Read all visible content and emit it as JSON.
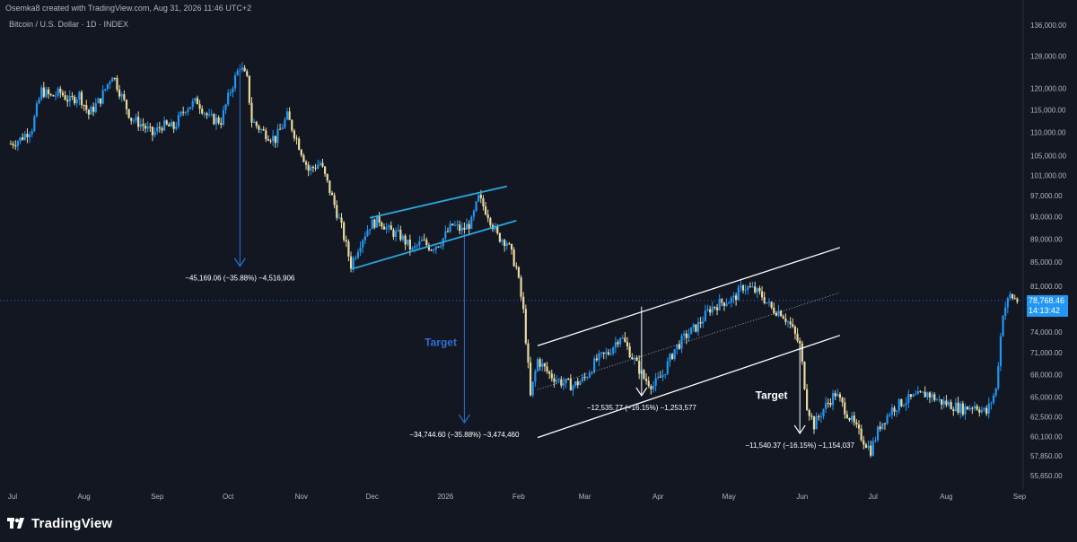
{
  "header": {
    "caption": "Osemka8 created with TradingView.com, Aug 31, 2026 11:46 UTC+2",
    "symbol": "Bitcoin / U.S. Dollar · 1D · INDEX"
  },
  "footer": {
    "brand": "TradingView"
  },
  "price_tag": {
    "price": "78,768.46",
    "countdown": "14:13:42"
  },
  "colors": {
    "background": "#131722",
    "up": "#2196f3",
    "down": "#e8d9a0",
    "wedge_lines": "#29a9e0",
    "channel_lines": "#ffffff",
    "arrow_blue": "#2f6fd6",
    "target_blue": "#2f6fd6",
    "current_price_line": "#2962ff",
    "axis_text": "#b2b5be"
  },
  "chart_data": {
    "type": "candlestick",
    "title": "Bitcoin / U.S. Dollar · 1D · INDEX",
    "xlabel": "",
    "ylabel": "",
    "x_tick_labels": [
      "Jul",
      "Aug",
      "Sep",
      "Oct",
      "Nov",
      "Dec",
      "2026",
      "Feb",
      "Mar",
      "Apr",
      "May",
      "Jun",
      "Jul",
      "Aug",
      "Sep"
    ],
    "y_tick_labels": [
      "136,000.00",
      "128,000.00",
      "120,000.00",
      "115,000.00",
      "110,000.00",
      "105,000.00",
      "101,000.00",
      "97,000.00",
      "93,000.00",
      "89,000.00",
      "85,000.00",
      "81,000.00",
      "74,000.00",
      "71,000.00",
      "68,000.00",
      "65,000.00",
      "62,500.00",
      "60,100.00",
      "57,850.00",
      "55,650.00"
    ],
    "y_ticks": [
      136000,
      128000,
      120000,
      115000,
      110000,
      105000,
      101000,
      97000,
      93000,
      89000,
      85000,
      81000,
      74000,
      71000,
      68000,
      65000,
      62500,
      60100,
      57850,
      55650
    ],
    "ylim": [
      53500,
      138500
    ],
    "y_scale": "log",
    "current_price": 78768.46,
    "grid": false,
    "close_path": [
      {
        "x": "2025-07-01",
        "y": 107500
      },
      {
        "x": "2025-07-05",
        "y": 108500
      },
      {
        "x": "2025-07-10",
        "y": 111000
      },
      {
        "x": "2025-07-14",
        "y": 119500
      },
      {
        "x": "2025-07-18",
        "y": 118000
      },
      {
        "x": "2025-07-22",
        "y": 119000
      },
      {
        "x": "2025-07-26",
        "y": 117000
      },
      {
        "x": "2025-07-30",
        "y": 118500
      },
      {
        "x": "2025-08-03",
        "y": 114000
      },
      {
        "x": "2025-08-08",
        "y": 117500
      },
      {
        "x": "2025-08-13",
        "y": 123500
      },
      {
        "x": "2025-08-17",
        "y": 118000
      },
      {
        "x": "2025-08-21",
        "y": 113000
      },
      {
        "x": "2025-08-26",
        "y": 111500
      },
      {
        "x": "2025-08-30",
        "y": 109500
      },
      {
        "x": "2025-09-03",
        "y": 111500
      },
      {
        "x": "2025-09-08",
        "y": 111000
      },
      {
        "x": "2025-09-13",
        "y": 115500
      },
      {
        "x": "2025-09-18",
        "y": 117000
      },
      {
        "x": "2025-09-23",
        "y": 113000
      },
      {
        "x": "2025-09-28",
        "y": 112500
      },
      {
        "x": "2025-10-02",
        "y": 119500
      },
      {
        "x": "2025-10-06",
        "y": 125500
      },
      {
        "x": "2025-10-09",
        "y": 122000
      },
      {
        "x": "2025-10-11",
        "y": 112500
      },
      {
        "x": "2025-10-16",
        "y": 110000
      },
      {
        "x": "2025-10-21",
        "y": 108500
      },
      {
        "x": "2025-10-26",
        "y": 113500
      },
      {
        "x": "2025-10-30",
        "y": 108500
      },
      {
        "x": "2025-11-04",
        "y": 102000
      },
      {
        "x": "2025-11-09",
        "y": 103500
      },
      {
        "x": "2025-11-13",
        "y": 98000
      },
      {
        "x": "2025-11-18",
        "y": 91000
      },
      {
        "x": "2025-11-22",
        "y": 84500
      },
      {
        "x": "2025-11-26",
        "y": 88500
      },
      {
        "x": "2025-11-30",
        "y": 91500
      },
      {
        "x": "2025-12-04",
        "y": 92500
      },
      {
        "x": "2025-12-08",
        "y": 90500
      },
      {
        "x": "2025-12-13",
        "y": 89500
      },
      {
        "x": "2025-12-18",
        "y": 87000
      },
      {
        "x": "2025-12-22",
        "y": 88500
      },
      {
        "x": "2025-12-26",
        "y": 87500
      },
      {
        "x": "2025-12-30",
        "y": 88500
      },
      {
        "x": "2026-01-04",
        "y": 91500
      },
      {
        "x": "2026-01-08",
        "y": 90500
      },
      {
        "x": "2026-01-12",
        "y": 92000
      },
      {
        "x": "2026-01-15",
        "y": 96500
      },
      {
        "x": "2026-01-19",
        "y": 93500
      },
      {
        "x": "2026-01-23",
        "y": 89500
      },
      {
        "x": "2026-01-27",
        "y": 88500
      },
      {
        "x": "2026-01-31",
        "y": 84000
      },
      {
        "x": "2026-02-03",
        "y": 77000
      },
      {
        "x": "2026-02-06",
        "y": 65000
      },
      {
        "x": "2026-02-09",
        "y": 70000
      },
      {
        "x": "2026-02-14",
        "y": 68000
      },
      {
        "x": "2026-02-19",
        "y": 67000
      },
      {
        "x": "2026-02-24",
        "y": 66500
      },
      {
        "x": "2026-03-01",
        "y": 67500
      },
      {
        "x": "2026-03-06",
        "y": 70000
      },
      {
        "x": "2026-03-11",
        "y": 71000
      },
      {
        "x": "2026-03-16",
        "y": 73500
      },
      {
        "x": "2026-03-21",
        "y": 70500
      },
      {
        "x": "2026-03-26",
        "y": 67500
      },
      {
        "x": "2026-03-30",
        "y": 66500
      },
      {
        "x": "2026-04-03",
        "y": 68000
      },
      {
        "x": "2026-04-08",
        "y": 71500
      },
      {
        "x": "2026-04-13",
        "y": 73500
      },
      {
        "x": "2026-04-18",
        "y": 75000
      },
      {
        "x": "2026-04-23",
        "y": 77500
      },
      {
        "x": "2026-04-28",
        "y": 78500
      },
      {
        "x": "2026-05-03",
        "y": 79000
      },
      {
        "x": "2026-05-07",
        "y": 81000
      },
      {
        "x": "2026-05-11",
        "y": 80500
      },
      {
        "x": "2026-05-15",
        "y": 79500
      },
      {
        "x": "2026-05-19",
        "y": 77500
      },
      {
        "x": "2026-05-23",
        "y": 77000
      },
      {
        "x": "2026-05-27",
        "y": 75000
      },
      {
        "x": "2026-05-31",
        "y": 72000
      },
      {
        "x": "2026-06-03",
        "y": 64000
      },
      {
        "x": "2026-06-06",
        "y": 61500
      },
      {
        "x": "2026-06-10",
        "y": 63500
      },
      {
        "x": "2026-06-15",
        "y": 65500
      },
      {
        "x": "2026-06-20",
        "y": 63000
      },
      {
        "x": "2026-06-25",
        "y": 60500
      },
      {
        "x": "2026-06-30",
        "y": 58500
      },
      {
        "x": "2026-07-04",
        "y": 61500
      },
      {
        "x": "2026-07-09",
        "y": 63500
      },
      {
        "x": "2026-07-14",
        "y": 64500
      },
      {
        "x": "2026-07-19",
        "y": 65000
      },
      {
        "x": "2026-07-24",
        "y": 65500
      },
      {
        "x": "2026-07-29",
        "y": 64500
      },
      {
        "x": "2026-08-03",
        "y": 64000
      },
      {
        "x": "2026-08-08",
        "y": 63500
      },
      {
        "x": "2026-08-13",
        "y": 64000
      },
      {
        "x": "2026-08-18",
        "y": 63000
      },
      {
        "x": "2026-08-22",
        "y": 66000
      },
      {
        "x": "2026-08-25",
        "y": 77000
      },
      {
        "x": "2026-08-28",
        "y": 79500
      },
      {
        "x": "2026-08-31",
        "y": 78768
      }
    ],
    "annotations": [
      {
        "type": "measure",
        "text": "−45,169.06 (−35.88%) −4,516,906",
        "from": {
          "x": "2025-10-06",
          "y": 125900
        },
        "to": {
          "x": "2025-10-06",
          "y": 84300
        }
      },
      {
        "type": "measure",
        "text": "−34,744.60 (−35.88%) −3,474,460",
        "from": {
          "x": "2026-01-09",
          "y": 90000
        },
        "to": {
          "x": "2026-01-09",
          "y": 61800
        }
      },
      {
        "type": "measure",
        "text": "−12,535.77 (−16.15%) −1,253,577",
        "from": {
          "x": "2026-03-25",
          "y": 77800
        },
        "to": {
          "x": "2026-03-25",
          "y": 65200
        }
      },
      {
        "type": "measure",
        "text": "−11,540.37 (−16.15%) −1,154,037",
        "from": {
          "x": "2026-05-31",
          "y": 72000
        },
        "to": {
          "x": "2026-05-31",
          "y": 60500
        }
      },
      {
        "type": "label",
        "text": "Target",
        "color": "blue",
        "at": {
          "x": "2025-12-30",
          "y": 72000
        }
      },
      {
        "type": "label",
        "text": "Target",
        "color": "white",
        "at": {
          "x": "2026-05-19",
          "y": 64800
        }
      },
      {
        "type": "trendline",
        "name": "wedge-upper",
        "from": {
          "x": "2025-11-30",
          "y": 92800
        },
        "to": {
          "x": "2026-01-27",
          "y": 98800
        }
      },
      {
        "type": "trendline",
        "name": "wedge-lower",
        "from": {
          "x": "2025-11-22",
          "y": 83800
        },
        "to": {
          "x": "2026-01-31",
          "y": 92300
        }
      },
      {
        "type": "trendline",
        "name": "channel-upper",
        "from": {
          "x": "2026-02-09",
          "y": 72000
        },
        "to": {
          "x": "2026-06-17",
          "y": 87500
        }
      },
      {
        "type": "trendline",
        "name": "channel-middle",
        "dashed": true,
        "from": {
          "x": "2026-02-09",
          "y": 66000
        },
        "to": {
          "x": "2026-06-17",
          "y": 80000
        }
      },
      {
        "type": "trendline",
        "name": "channel-lower",
        "from": {
          "x": "2026-02-09",
          "y": 60000
        },
        "to": {
          "x": "2026-06-17",
          "y": 73500
        }
      }
    ]
  }
}
